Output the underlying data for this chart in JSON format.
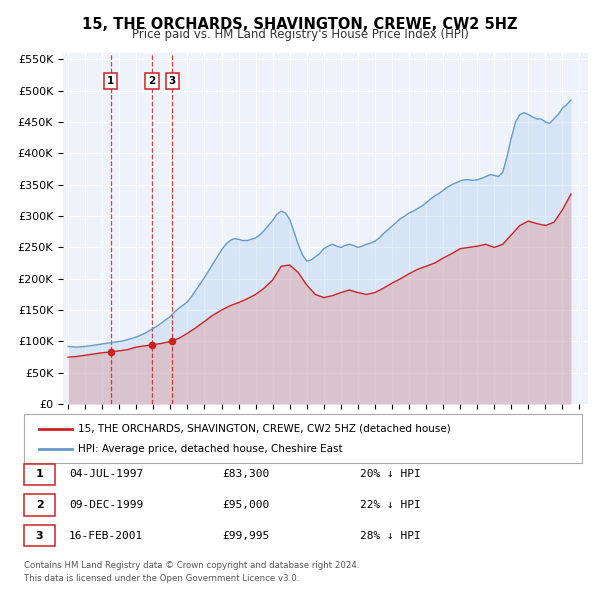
{
  "title": "15, THE ORCHARDS, SHAVINGTON, CREWE, CW2 5HZ",
  "subtitle": "Price paid vs. HM Land Registry's House Price Index (HPI)",
  "xlim": [
    1994.7,
    2025.5
  ],
  "ylim": [
    0,
    560000
  ],
  "yticks": [
    0,
    50000,
    100000,
    150000,
    200000,
    250000,
    300000,
    350000,
    400000,
    450000,
    500000,
    550000
  ],
  "ytick_labels": [
    "£0",
    "£50K",
    "£100K",
    "£150K",
    "£200K",
    "£250K",
    "£300K",
    "£350K",
    "£400K",
    "£450K",
    "£500K",
    "£550K"
  ],
  "xticks": [
    1995,
    1996,
    1997,
    1998,
    1999,
    2000,
    2001,
    2002,
    2003,
    2004,
    2005,
    2006,
    2007,
    2008,
    2009,
    2010,
    2011,
    2012,
    2013,
    2014,
    2015,
    2016,
    2017,
    2018,
    2019,
    2020,
    2021,
    2022,
    2023,
    2024,
    2025
  ],
  "hpi_color": "#6699cc",
  "hpi_fill_color": "#aaccee",
  "price_color": "#cc2222",
  "price_fill_color": "#dd8888",
  "background_color": "#eef2fa",
  "grid_color": "#ffffff",
  "legend_label_price": "15, THE ORCHARDS, SHAVINGTON, CREWE, CW2 5HZ (detached house)",
  "legend_label_hpi": "HPI: Average price, detached house, Cheshire East",
  "transactions": [
    {
      "num": 1,
      "date": "04-JUL-1997",
      "year": 1997.5,
      "price": 83300,
      "hpi_pct": "20%",
      "label": "1"
    },
    {
      "num": 2,
      "date": "09-DEC-1999",
      "year": 1999.92,
      "price": 95000,
      "hpi_pct": "22%",
      "label": "2"
    },
    {
      "num": 3,
      "date": "16-FEB-2001",
      "year": 2001.12,
      "price": 99995,
      "hpi_pct": "28%",
      "label": "3"
    }
  ],
  "footer_line1": "Contains HM Land Registry data © Crown copyright and database right 2024.",
  "footer_line2": "This data is licensed under the Open Government Licence v3.0.",
  "hpi_data_x": [
    1995.0,
    1995.25,
    1995.5,
    1995.75,
    1996.0,
    1996.25,
    1996.5,
    1996.75,
    1997.0,
    1997.25,
    1997.5,
    1997.75,
    1998.0,
    1998.25,
    1998.5,
    1998.75,
    1999.0,
    1999.25,
    1999.5,
    1999.75,
    2000.0,
    2000.25,
    2000.5,
    2000.75,
    2001.0,
    2001.25,
    2001.5,
    2001.75,
    2002.0,
    2002.25,
    2002.5,
    2002.75,
    2003.0,
    2003.25,
    2003.5,
    2003.75,
    2004.0,
    2004.25,
    2004.5,
    2004.75,
    2005.0,
    2005.25,
    2005.5,
    2005.75,
    2006.0,
    2006.25,
    2006.5,
    2006.75,
    2007.0,
    2007.25,
    2007.5,
    2007.75,
    2008.0,
    2008.25,
    2008.5,
    2008.75,
    2009.0,
    2009.25,
    2009.5,
    2009.75,
    2010.0,
    2010.25,
    2010.5,
    2010.75,
    2011.0,
    2011.25,
    2011.5,
    2011.75,
    2012.0,
    2012.25,
    2012.5,
    2012.75,
    2013.0,
    2013.25,
    2013.5,
    2013.75,
    2014.0,
    2014.25,
    2014.5,
    2014.75,
    2015.0,
    2015.25,
    2015.5,
    2015.75,
    2016.0,
    2016.25,
    2016.5,
    2016.75,
    2017.0,
    2017.25,
    2017.5,
    2017.75,
    2018.0,
    2018.25,
    2018.5,
    2018.75,
    2019.0,
    2019.25,
    2019.5,
    2019.75,
    2020.0,
    2020.25,
    2020.5,
    2020.75,
    2021.0,
    2021.25,
    2021.5,
    2021.75,
    2022.0,
    2022.25,
    2022.5,
    2022.75,
    2023.0,
    2023.25,
    2023.5,
    2023.75,
    2024.0,
    2024.25,
    2024.5
  ],
  "hpi_data_y": [
    92000,
    91500,
    91000,
    91500,
    92000,
    93000,
    94000,
    95000,
    96000,
    97000,
    98000,
    99000,
    100000,
    101000,
    103000,
    105000,
    107000,
    110000,
    113000,
    117000,
    121000,
    125000,
    130000,
    135000,
    140000,
    147000,
    153000,
    158000,
    163000,
    172000,
    182000,
    192000,
    202000,
    213000,
    224000,
    235000,
    246000,
    255000,
    261000,
    264000,
    263000,
    261000,
    261000,
    263000,
    265000,
    270000,
    277000,
    285000,
    293000,
    303000,
    308000,
    305000,
    295000,
    275000,
    255000,
    238000,
    228000,
    230000,
    235000,
    240000,
    248000,
    252000,
    255000,
    252000,
    250000,
    253000,
    255000,
    253000,
    250000,
    252000,
    255000,
    257000,
    260000,
    265000,
    272000,
    278000,
    284000,
    290000,
    296000,
    300000,
    305000,
    308000,
    312000,
    316000,
    321000,
    327000,
    332000,
    336000,
    341000,
    346000,
    350000,
    353000,
    356000,
    358000,
    358000,
    357000,
    358000,
    360000,
    363000,
    366000,
    365000,
    363000,
    370000,
    395000,
    425000,
    450000,
    462000,
    465000,
    462000,
    458000,
    455000,
    455000,
    450000,
    448000,
    455000,
    462000,
    472000,
    478000,
    485000
  ],
  "price_data_x": [
    1995.0,
    1995.5,
    1996.0,
    1996.5,
    1997.0,
    1997.5,
    1998.0,
    1998.5,
    1999.0,
    1999.5,
    2000.0,
    2000.5,
    2001.0,
    2001.5,
    2002.0,
    2002.5,
    2003.0,
    2003.5,
    2004.0,
    2004.5,
    2005.0,
    2005.5,
    2006.0,
    2006.5,
    2007.0,
    2007.5,
    2008.0,
    2008.5,
    2009.0,
    2009.5,
    2010.0,
    2010.5,
    2011.0,
    2011.5,
    2012.0,
    2012.5,
    2013.0,
    2013.5,
    2014.0,
    2014.5,
    2015.0,
    2015.5,
    2016.0,
    2016.5,
    2017.0,
    2017.5,
    2018.0,
    2018.5,
    2019.0,
    2019.5,
    2020.0,
    2020.5,
    2021.0,
    2021.5,
    2022.0,
    2022.5,
    2023.0,
    2023.5,
    2024.0,
    2024.5
  ],
  "price_data_y": [
    75000,
    76000,
    78000,
    80000,
    82000,
    83300,
    85000,
    87000,
    91000,
    93000,
    95000,
    97000,
    99995,
    105000,
    113000,
    122000,
    132000,
    142000,
    150000,
    157000,
    162000,
    168000,
    175000,
    185000,
    198000,
    220000,
    222000,
    210000,
    190000,
    175000,
    170000,
    173000,
    178000,
    182000,
    178000,
    175000,
    178000,
    185000,
    193000,
    200000,
    208000,
    215000,
    220000,
    225000,
    233000,
    240000,
    248000,
    250000,
    252000,
    255000,
    250000,
    255000,
    270000,
    285000,
    292000,
    288000,
    285000,
    290000,
    310000,
    335000
  ]
}
